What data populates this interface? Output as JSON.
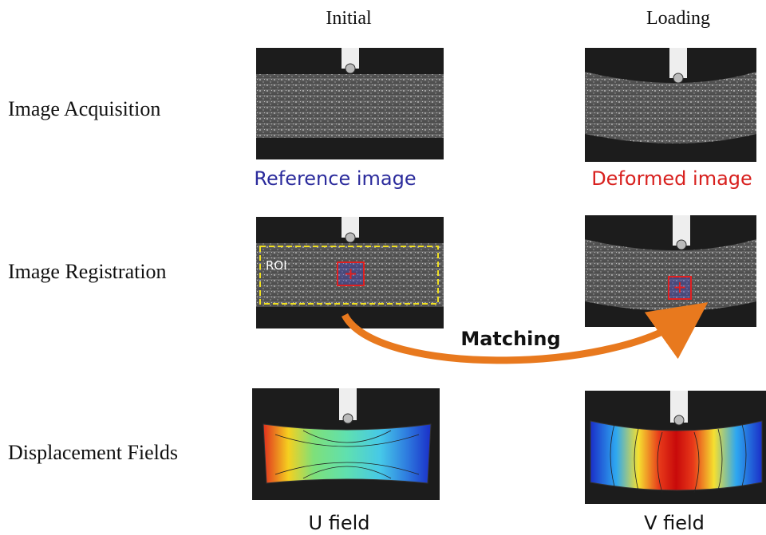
{
  "columns": [
    "Initial",
    "Loading"
  ],
  "rows": [
    {
      "label": "Image Acquisition",
      "captions": [
        "Reference image",
        "Deformed image"
      ]
    },
    {
      "label": "Image Registration"
    },
    {
      "label": "Displacement Fields",
      "captions": [
        "U field",
        "V field"
      ]
    }
  ],
  "roi_label": "ROI",
  "arrow_label": "Matching"
}
